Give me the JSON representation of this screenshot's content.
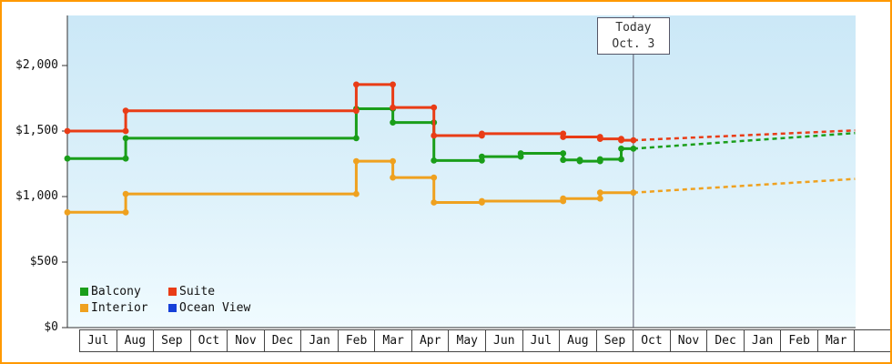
{
  "frame": {
    "border_color": "#ff9900",
    "background": "#ffffff",
    "plot_gradient_top": "#cbe8f7",
    "plot_gradient_bottom": "#f0fbff"
  },
  "chart_data": {
    "type": "line",
    "subtype": "step-price-history-with-forecast",
    "title": "",
    "x_axis": {
      "months": [
        "Jul",
        "Aug",
        "Sep",
        "Oct",
        "Nov",
        "Dec",
        "Jan",
        "Feb",
        "Mar",
        "Apr",
        "May",
        "Jun",
        "Jul",
        "Aug",
        "Sep",
        "Oct",
        "Nov",
        "Dec",
        "Jan",
        "Feb",
        "Mar"
      ]
    },
    "y_axis": {
      "unit": "USD",
      "range": [
        0,
        2380
      ],
      "ticks": [
        {
          "value": 2000,
          "label": "$2,000"
        },
        {
          "value": 1500,
          "label": "$1,500"
        },
        {
          "value": 1000,
          "label": "$1,000"
        },
        {
          "value": 500,
          "label": "$500"
        },
        {
          "value": 0,
          "label": "$0"
        }
      ]
    },
    "today": {
      "label_line1": "Today",
      "label_line2": "Oct. 3",
      "month_position": 15
    },
    "legend": [
      {
        "name": "Balcony",
        "color": "#1a9e1a"
      },
      {
        "name": "Suite",
        "color": "#e93c16"
      },
      {
        "name": "Interior",
        "color": "#efa11f"
      },
      {
        "name": "Ocean View",
        "color": "#1540d8"
      }
    ],
    "series": [
      {
        "name": "Interior",
        "color": "#efa11f",
        "style": "solid",
        "points": [
          [
            -0.32,
            880
          ],
          [
            1.26,
            880
          ],
          [
            1.26,
            1020
          ],
          [
            7.5,
            1020
          ],
          [
            7.5,
            1270
          ],
          [
            8.49,
            1270
          ],
          [
            8.49,
            1145
          ],
          [
            9.6,
            1145
          ],
          [
            9.6,
            955
          ],
          [
            10.9,
            955
          ],
          [
            10.9,
            965
          ],
          [
            13.1,
            965
          ],
          [
            13.1,
            985
          ],
          [
            14.1,
            985
          ],
          [
            14.1,
            1030
          ],
          [
            15,
            1030
          ]
        ]
      },
      {
        "name": "Interior forecast",
        "color": "#efa11f",
        "style": "dashed",
        "points": [
          [
            15,
            1030
          ],
          [
            21,
            1135
          ]
        ]
      },
      {
        "name": "Balcony",
        "color": "#1a9e1a",
        "style": "solid",
        "points": [
          [
            -0.32,
            1290
          ],
          [
            1.26,
            1290
          ],
          [
            1.26,
            1445
          ],
          [
            7.5,
            1445
          ],
          [
            7.5,
            1670
          ],
          [
            8.49,
            1670
          ],
          [
            8.49,
            1565
          ],
          [
            9.6,
            1565
          ],
          [
            9.6,
            1275
          ],
          [
            10.9,
            1275
          ],
          [
            10.9,
            1305
          ],
          [
            11.95,
            1305
          ],
          [
            11.95,
            1330
          ],
          [
            13.1,
            1330
          ],
          [
            13.1,
            1280
          ],
          [
            13.55,
            1280
          ],
          [
            13.55,
            1270
          ],
          [
            14.1,
            1270
          ],
          [
            14.1,
            1285
          ],
          [
            14.67,
            1285
          ],
          [
            14.67,
            1365
          ],
          [
            15,
            1365
          ]
        ]
      },
      {
        "name": "Balcony forecast",
        "color": "#1a9e1a",
        "style": "dashed",
        "points": [
          [
            15,
            1365
          ],
          [
            21,
            1485
          ]
        ]
      },
      {
        "name": "Suite",
        "color": "#e93c16",
        "style": "solid",
        "points": [
          [
            -0.32,
            1500
          ],
          [
            1.26,
            1500
          ],
          [
            1.26,
            1655
          ],
          [
            7.5,
            1655
          ],
          [
            7.5,
            1855
          ],
          [
            8.49,
            1855
          ],
          [
            8.49,
            1680
          ],
          [
            9.6,
            1680
          ],
          [
            9.6,
            1465
          ],
          [
            10.9,
            1465
          ],
          [
            10.9,
            1480
          ],
          [
            13.1,
            1480
          ],
          [
            13.1,
            1455
          ],
          [
            14.1,
            1455
          ],
          [
            14.1,
            1440
          ],
          [
            14.67,
            1440
          ],
          [
            14.67,
            1430
          ],
          [
            15,
            1430
          ]
        ]
      },
      {
        "name": "Suite forecast",
        "color": "#e93c16",
        "style": "dashed",
        "points": [
          [
            15,
            1430
          ],
          [
            21,
            1505
          ]
        ]
      }
    ]
  }
}
